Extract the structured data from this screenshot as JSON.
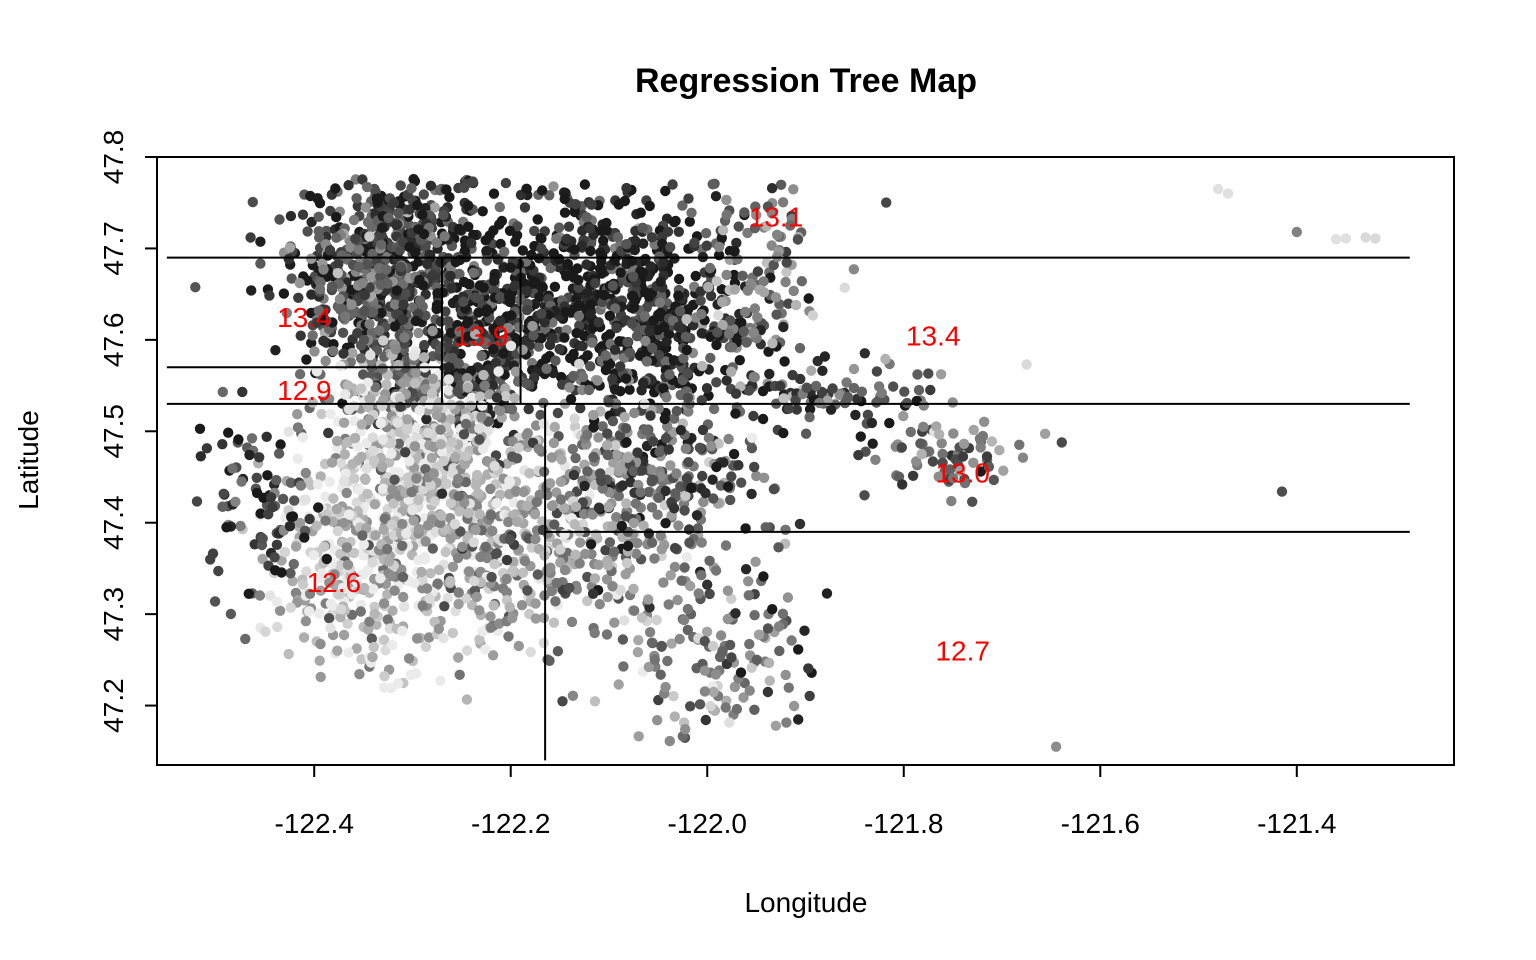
{
  "chart_data": {
    "type": "scatter",
    "title": "Regression Tree Map",
    "xlabel": "Longitude",
    "ylabel": "Latitude",
    "xlim": [
      -122.56,
      -121.24
    ],
    "ylim": [
      47.135,
      47.8
    ],
    "xticks": [
      -122.4,
      -122.2,
      -122.0,
      -121.8,
      -121.6,
      -121.4
    ],
    "xtick_labels": [
      "-122.4",
      "-122.2",
      "-122.0",
      "-121.8",
      "-121.6",
      "-121.4"
    ],
    "yticks": [
      47.2,
      47.3,
      47.4,
      47.5,
      47.6,
      47.7,
      47.8
    ],
    "ytick_labels": [
      "47.2",
      "47.3",
      "47.4",
      "47.5",
      "47.6",
      "47.7",
      "47.8"
    ],
    "grid": false,
    "legend": "none",
    "point_colors": "grayscale (dark = high value, light = low value)",
    "clusters": [
      {
        "cx": -122.32,
        "cy": 47.7,
        "sx": 0.05,
        "sy": 0.05,
        "n": 420,
        "shade": 0.22
      },
      {
        "cx": -122.35,
        "cy": 47.64,
        "sx": 0.04,
        "sy": 0.04,
        "n": 260,
        "shade": 0.35
      },
      {
        "cx": -122.3,
        "cy": 47.55,
        "sx": 0.04,
        "sy": 0.03,
        "n": 160,
        "shade": 0.45
      },
      {
        "cx": -122.12,
        "cy": 47.67,
        "sx": 0.07,
        "sy": 0.06,
        "n": 520,
        "shade": 0.15
      },
      {
        "cx": -122.22,
        "cy": 47.6,
        "sx": 0.03,
        "sy": 0.05,
        "n": 260,
        "shade": 0.16
      },
      {
        "cx": -122.05,
        "cy": 47.6,
        "sx": 0.05,
        "sy": 0.04,
        "n": 260,
        "shade": 0.18
      },
      {
        "cx": -122.31,
        "cy": 47.47,
        "sx": 0.05,
        "sy": 0.05,
        "n": 380,
        "shade": 0.8
      },
      {
        "cx": -122.35,
        "cy": 47.34,
        "sx": 0.05,
        "sy": 0.05,
        "n": 300,
        "shade": 0.78
      },
      {
        "cx": -122.23,
        "cy": 47.4,
        "sx": 0.05,
        "sy": 0.08,
        "n": 360,
        "shade": 0.65
      },
      {
        "cx": -122.1,
        "cy": 47.4,
        "sx": 0.06,
        "sy": 0.07,
        "n": 340,
        "shade": 0.52
      },
      {
        "cx": -122.04,
        "cy": 47.46,
        "sx": 0.05,
        "sy": 0.04,
        "n": 160,
        "shade": 0.35
      },
      {
        "cx": -122.46,
        "cy": 47.42,
        "sx": 0.03,
        "sy": 0.05,
        "n": 90,
        "shade": 0.25
      },
      {
        "cx": -122.0,
        "cy": 47.24,
        "sx": 0.04,
        "sy": 0.04,
        "n": 90,
        "shade": 0.5
      },
      {
        "cx": -121.93,
        "cy": 47.29,
        "sx": 0.03,
        "sy": 0.04,
        "n": 40,
        "shade": 0.4
      },
      {
        "cx": -121.95,
        "cy": 47.69,
        "sx": 0.04,
        "sy": 0.05,
        "n": 80,
        "shade": 0.45
      },
      {
        "cx": -121.88,
        "cy": 47.54,
        "sx": 0.05,
        "sy": 0.02,
        "n": 110,
        "shade": 0.35
      },
      {
        "cx": -121.75,
        "cy": 47.47,
        "sx": 0.04,
        "sy": 0.02,
        "n": 70,
        "shade": 0.4
      },
      {
        "cx": -121.96,
        "cy": 47.62,
        "sx": 0.03,
        "sy": 0.03,
        "n": 40,
        "shade": 0.45
      }
    ],
    "outliers": [
      {
        "x": -121.48,
        "y": 47.765,
        "shade": 0.88
      },
      {
        "x": -121.47,
        "y": 47.76,
        "shade": 0.88
      },
      {
        "x": -121.4,
        "y": 47.718,
        "shade": 0.5
      },
      {
        "x": -121.36,
        "y": 47.71,
        "shade": 0.88
      },
      {
        "x": -121.35,
        "y": 47.711,
        "shade": 0.88
      },
      {
        "x": -121.33,
        "y": 47.712,
        "shade": 0.85
      },
      {
        "x": -121.32,
        "y": 47.711,
        "shade": 0.85
      },
      {
        "x": -121.675,
        "y": 47.573,
        "shade": 0.85
      },
      {
        "x": -121.415,
        "y": 47.434,
        "shade": 0.3
      },
      {
        "x": -121.645,
        "y": 47.155,
        "shade": 0.55
      },
      {
        "x": -121.84,
        "y": 47.43,
        "shade": 0.3
      }
    ],
    "splits": [
      {
        "orientation": "horizontal",
        "value": 47.69,
        "from": -122.55,
        "to": -121.285
      },
      {
        "orientation": "horizontal",
        "value": 47.53,
        "from": -122.55,
        "to": -121.285
      },
      {
        "orientation": "horizontal",
        "value": 47.57,
        "from": -122.55,
        "to": -122.27
      },
      {
        "orientation": "vertical",
        "value": -122.27,
        "from": 47.53,
        "to": 47.69
      },
      {
        "orientation": "vertical",
        "value": -122.19,
        "from": 47.53,
        "to": 47.69
      },
      {
        "orientation": "vertical",
        "value": -122.165,
        "from": 47.14,
        "to": 47.53
      },
      {
        "orientation": "horizontal",
        "value": 47.39,
        "from": -122.165,
        "to": -121.285
      }
    ],
    "leaf_labels": [
      {
        "x": -121.93,
        "y": 47.735,
        "text": "13.1"
      },
      {
        "x": -122.41,
        "y": 47.625,
        "text": "13.4"
      },
      {
        "x": -122.23,
        "y": 47.605,
        "text": "13.9"
      },
      {
        "x": -121.77,
        "y": 47.605,
        "text": "13.4"
      },
      {
        "x": -122.41,
        "y": 47.545,
        "text": "12.9"
      },
      {
        "x": -121.74,
        "y": 47.455,
        "text": "13.0"
      },
      {
        "x": -122.38,
        "y": 47.335,
        "text": "12.6"
      },
      {
        "x": -121.74,
        "y": 47.26,
        "text": "12.7"
      }
    ],
    "colors": {
      "leaf_label": "#ff0000",
      "split_line": "#000000",
      "axis": "#000000"
    }
  }
}
